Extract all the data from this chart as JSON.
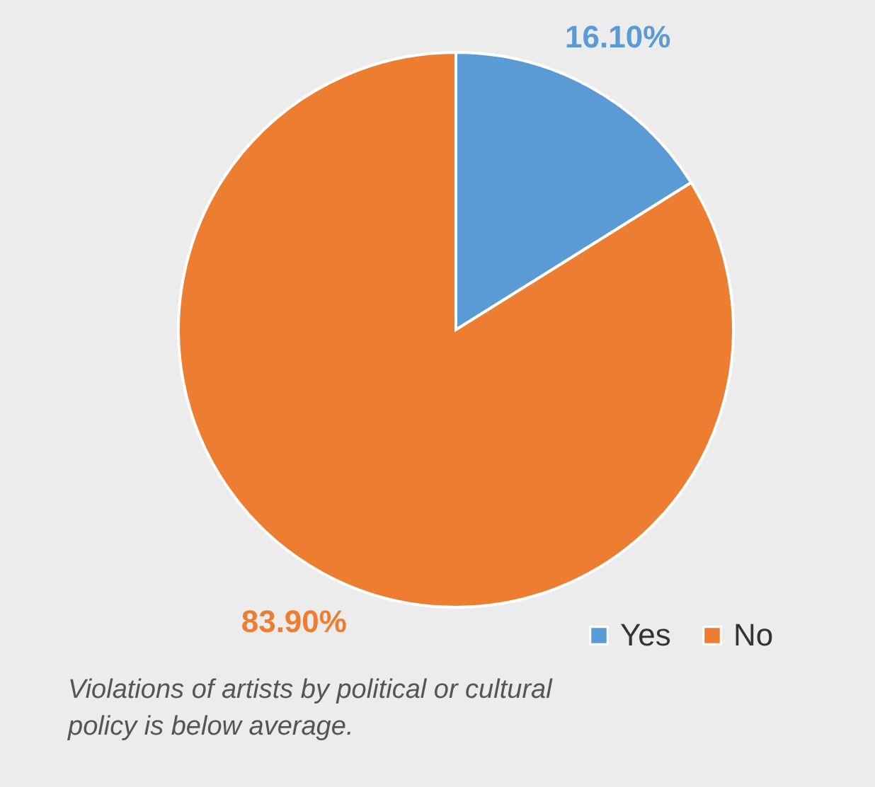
{
  "chart_data": {
    "type": "pie",
    "categories": [
      "Yes",
      "No"
    ],
    "values": [
      16.1,
      83.9
    ],
    "colors": [
      "#5b9bd5",
      "#ed7d31"
    ],
    "value_labels": [
      "16.10%",
      "83.90%"
    ],
    "legend": "bottom right",
    "annotations": [
      "Violations of artists by political or cultural policy is below average."
    ]
  }
}
